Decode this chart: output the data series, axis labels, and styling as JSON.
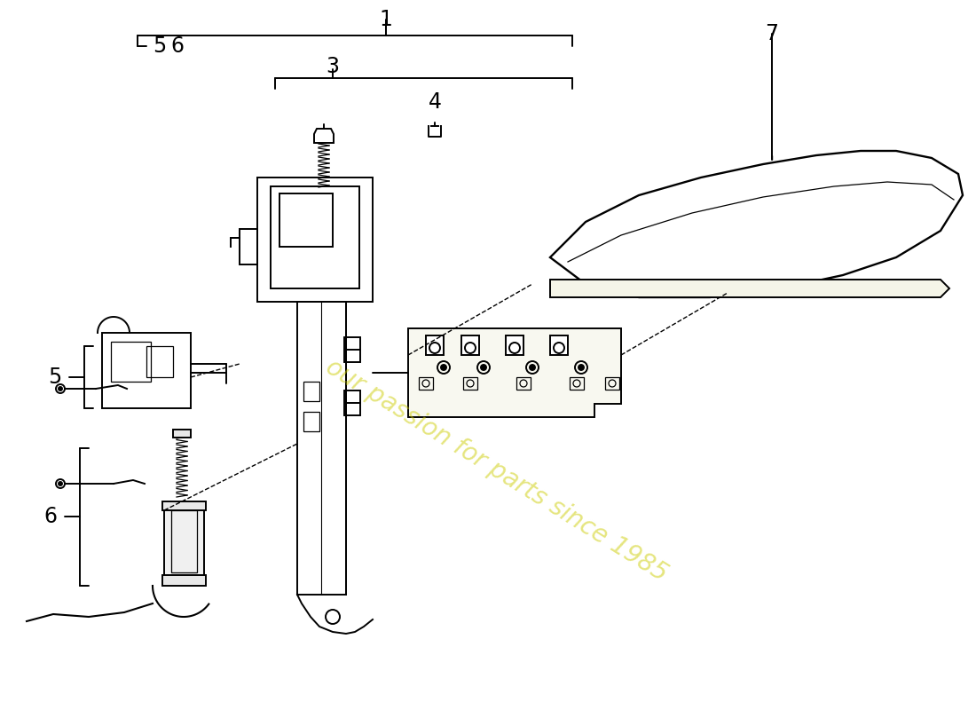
{
  "bg_color": "#ffffff",
  "line_color": "#000000",
  "watermark_text": "our passion for parts since 1985",
  "watermark_color": "#cccc00",
  "watermark_alpha": 0.5
}
